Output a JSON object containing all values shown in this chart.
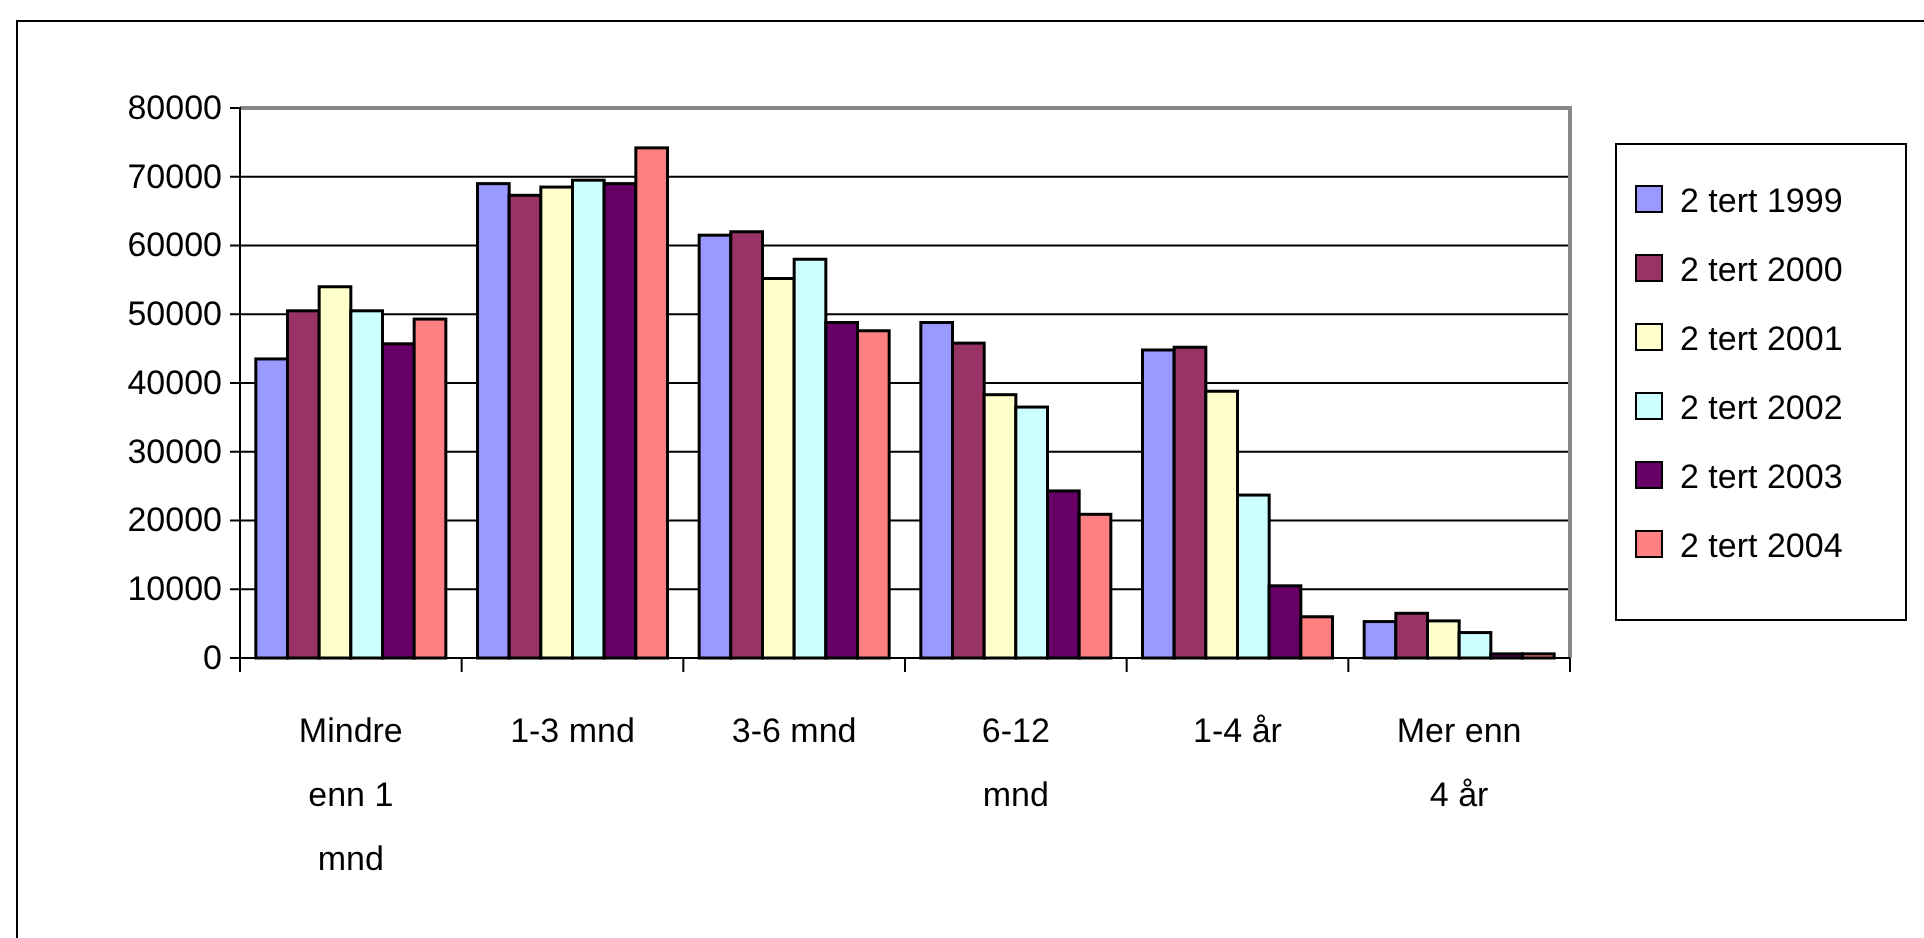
{
  "chart_data": {
    "type": "bar",
    "categories": [
      "Mindre enn 1 mnd",
      "1-3 mnd",
      "3-6 mnd",
      "6-12 mnd",
      "1-4 år",
      "Mer enn 4 år"
    ],
    "series": [
      {
        "name": "2 tert 1999",
        "color": "#9999ff",
        "values": [
          43500,
          69000,
          61500,
          48800,
          44800,
          5300
        ]
      },
      {
        "name": "2 tert 2000",
        "color": "#993366",
        "values": [
          50500,
          67300,
          62000,
          45800,
          45200,
          6500
        ]
      },
      {
        "name": "2 tert 2001",
        "color": "#ffffcc",
        "values": [
          54000,
          68500,
          55200,
          38300,
          38800,
          5400
        ]
      },
      {
        "name": "2 tert 2002",
        "color": "#ccffff",
        "values": [
          50500,
          69500,
          58000,
          36500,
          23700,
          3700
        ]
      },
      {
        "name": "2 tert 2003",
        "color": "#660066",
        "values": [
          45700,
          69000,
          48800,
          24300,
          10500,
          600
        ]
      },
      {
        "name": "2 tert 2004",
        "color": "#ff8080",
        "values": [
          49300,
          74200,
          47600,
          20900,
          6000,
          600
        ]
      }
    ],
    "ylim": [
      0,
      80000
    ],
    "yticks": [
      0,
      10000,
      20000,
      30000,
      40000,
      50000,
      60000,
      70000,
      80000
    ],
    "grid": "y",
    "legend": "right"
  }
}
